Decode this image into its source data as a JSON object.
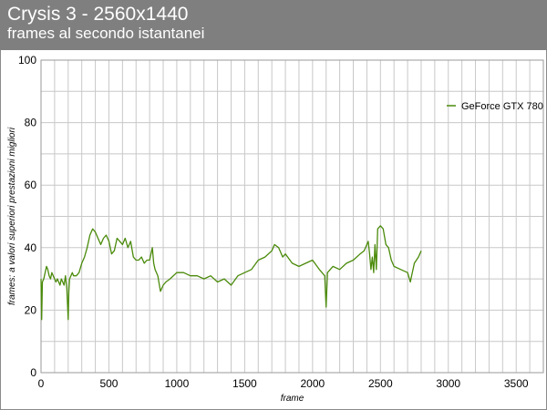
{
  "header": {
    "title": "Crysis 3 - 2560x1440",
    "subtitle": "frames al secondo istantanei"
  },
  "colors": {
    "header_bg": "#7f7f7f",
    "series": "#4a8a0a",
    "grid": "#c8c8c8"
  },
  "chart_data": {
    "type": "line",
    "title": "Crysis 3 - 2560x1440",
    "subtitle": "frames al secondo istantanei",
    "xlabel": "frame",
    "ylabel": "frames: a valori superiori prestazioni migliori",
    "xlim": [
      0,
      3700
    ],
    "ylim": [
      0,
      100
    ],
    "xticks": [
      0,
      500,
      1000,
      1500,
      2000,
      2500,
      3000,
      3500
    ],
    "yticks": [
      0,
      20,
      40,
      60,
      80,
      100
    ],
    "grid": true,
    "legend_position": "top-right",
    "series": [
      {
        "name": "GeForce GTX 780",
        "color": "#4a8a0a",
        "x": [
          0,
          5,
          10,
          20,
          30,
          40,
          50,
          60,
          70,
          80,
          90,
          100,
          110,
          120,
          130,
          140,
          150,
          160,
          170,
          180,
          190,
          200,
          205,
          210,
          220,
          230,
          240,
          260,
          280,
          300,
          320,
          340,
          360,
          380,
          400,
          420,
          440,
          460,
          480,
          500,
          520,
          540,
          560,
          580,
          600,
          620,
          640,
          660,
          680,
          700,
          720,
          740,
          760,
          780,
          800,
          820,
          830,
          840,
          860,
          880,
          900,
          920,
          950,
          1000,
          1050,
          1100,
          1150,
          1200,
          1250,
          1300,
          1350,
          1400,
          1450,
          1500,
          1550,
          1600,
          1650,
          1700,
          1720,
          1750,
          1780,
          1800,
          1850,
          1900,
          1950,
          2000,
          2050,
          2090,
          2100,
          2110,
          2150,
          2200,
          2250,
          2300,
          2350,
          2380,
          2400,
          2410,
          2420,
          2430,
          2440,
          2450,
          2460,
          2470,
          2480,
          2500,
          2520,
          2540,
          2560,
          2580,
          2600,
          2650,
          2700,
          2720,
          2730,
          2750,
          2780,
          2800
        ],
        "values": [
          30,
          17,
          29,
          30,
          32,
          34,
          33,
          31,
          30,
          32,
          31,
          30,
          29,
          30,
          29,
          28,
          30,
          29,
          28,
          31,
          27,
          17,
          26,
          30,
          31,
          32,
          31,
          31,
          32,
          35,
          37,
          40,
          44,
          46,
          45,
          43,
          41,
          43,
          44,
          42,
          38,
          39,
          43,
          42,
          41,
          43,
          40,
          42,
          37,
          36,
          36,
          37,
          35,
          36,
          36,
          40,
          35,
          33,
          31,
          26,
          28,
          29,
          30,
          32,
          32,
          31,
          31,
          30,
          31,
          29,
          30,
          28,
          31,
          32,
          33,
          36,
          37,
          39,
          41,
          40,
          37,
          38,
          35,
          34,
          35,
          36,
          33,
          31,
          21,
          32,
          34,
          33,
          35,
          36,
          38,
          39,
          41,
          42,
          38,
          33,
          37,
          32,
          41,
          33,
          46,
          47,
          46,
          41,
          40,
          36,
          34,
          33,
          32,
          29,
          31,
          35,
          37,
          39
        ]
      }
    ]
  }
}
